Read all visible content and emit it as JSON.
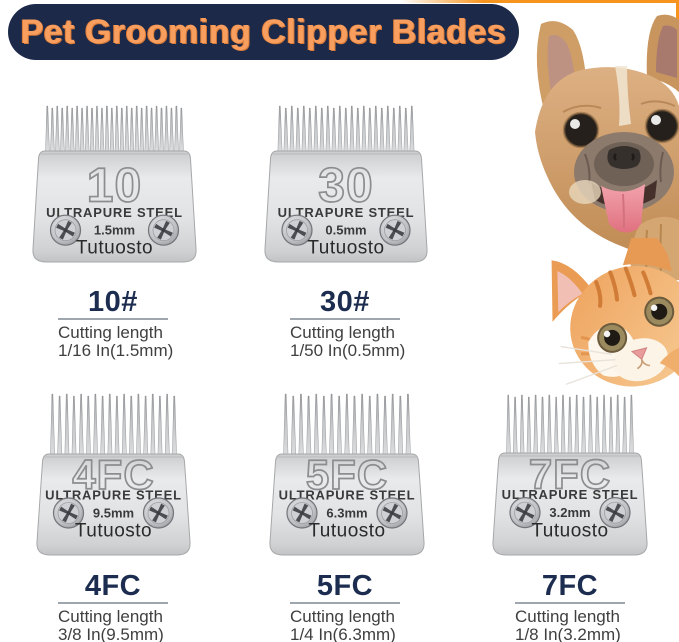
{
  "header": {
    "title": "Pet Grooming Clipper Blades",
    "bg_color": "#1d2949",
    "text_color": "#f89e5f"
  },
  "brand": "Tutuosto",
  "blades": [
    {
      "engraving": "10",
      "steel_label": "ULTRAPURE STEEL",
      "size": "1.5mm",
      "brand": "Tutuosto",
      "heading": "10#",
      "cutting_label": "Cutting length",
      "cutting_value": "1/16 In(1.5mm)",
      "teeth_count": 28,
      "teeth_style": "short"
    },
    {
      "engraving": "30",
      "steel_label": "ULTRAPURE STEEL",
      "size": "0.5mm",
      "brand": "Tutuosto",
      "heading": "30#",
      "cutting_label": "Cutting length",
      "cutting_value": "1/50 In(0.5mm)",
      "teeth_count": 23,
      "teeth_style": "short"
    },
    {
      "engraving": "4FC",
      "steel_label": "ULTRAPURE STEEL",
      "size": "9.5mm",
      "brand": "Tutuosto",
      "heading": "4FC",
      "cutting_label": "Cutting length",
      "cutting_value": "3/8 In(9.5mm)",
      "teeth_count": 18,
      "teeth_style": "long"
    },
    {
      "engraving": "5FC",
      "steel_label": "ULTRAPURE STEEL",
      "size": "6.3mm",
      "brand": "Tutuosto",
      "heading": "5FC",
      "cutting_label": "Cutting length",
      "cutting_value": "1/4 In(6.3mm)",
      "teeth_count": 17,
      "teeth_style": "long"
    },
    {
      "engraving": "7FC",
      "steel_label": "ULTRAPURE STEEL",
      "size": "3.2mm",
      "brand": "Tutuosto",
      "heading": "7FC",
      "cutting_label": "Cutting length",
      "cutting_value": "1/8 In(3.2mm)",
      "teeth_count": 19,
      "teeth_style": "long"
    }
  ],
  "photos": {
    "dog": "french-bulldog-peeking-with-tongue-out",
    "cat": "orange-tabby-kitten-peeking"
  },
  "colors": {
    "header_bg": "#1d2949",
    "header_text": "#f89e5f",
    "heading_navy": "#1c2d50",
    "body_text": "#3f3f3f",
    "underline_gray": "#9fa6ad",
    "blade_light": "#e9eaec",
    "blade_dark": "#c6c7c9",
    "frame_orange": "#f7941d"
  }
}
